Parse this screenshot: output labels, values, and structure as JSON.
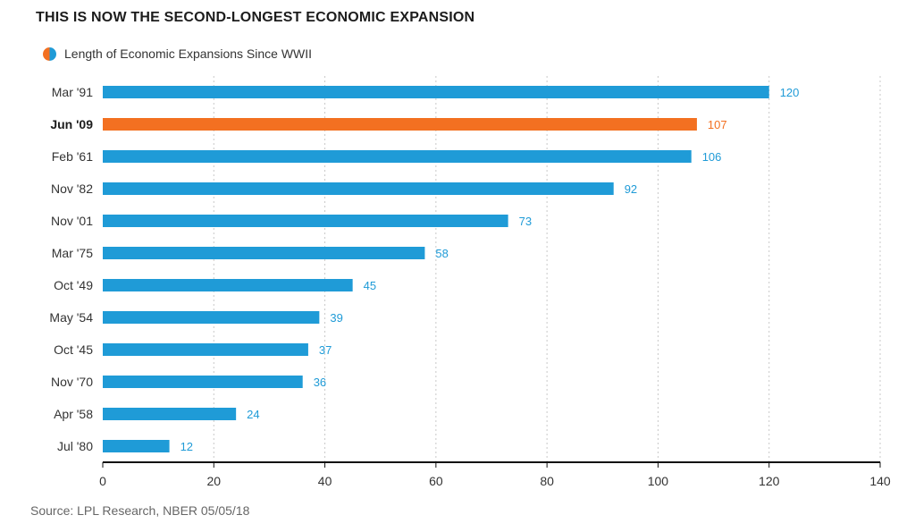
{
  "chart_data": {
    "type": "bar",
    "orientation": "horizontal",
    "title": "THIS IS NOW THE SECOND-LONGEST ECONOMIC EXPANSION",
    "legend": {
      "label": "Length of Economic Expansions Since WWII",
      "placement": "top-left"
    },
    "categories": [
      "Mar '91",
      "Jun '09",
      "Feb '61",
      "Nov '82",
      "Nov '01",
      "Mar '75",
      "Oct '49",
      "May '54",
      "Oct '45",
      "Nov '70",
      "Apr '58",
      "Jul '80"
    ],
    "values": [
      120,
      107,
      106,
      92,
      73,
      58,
      45,
      39,
      37,
      36,
      24,
      12
    ],
    "highlight": "Jun '09",
    "xlim": [
      0,
      140
    ],
    "xticks": [
      0,
      20,
      40,
      60,
      80,
      100,
      120,
      140
    ],
    "grid": "vertical dashed",
    "source": "Source: LPL Research, NBER 05/05/18"
  },
  "colors": {
    "bar": "#1f9bd7",
    "highlight": "#f37021",
    "grid": "#c8c8c8",
    "axis": "#111111"
  }
}
